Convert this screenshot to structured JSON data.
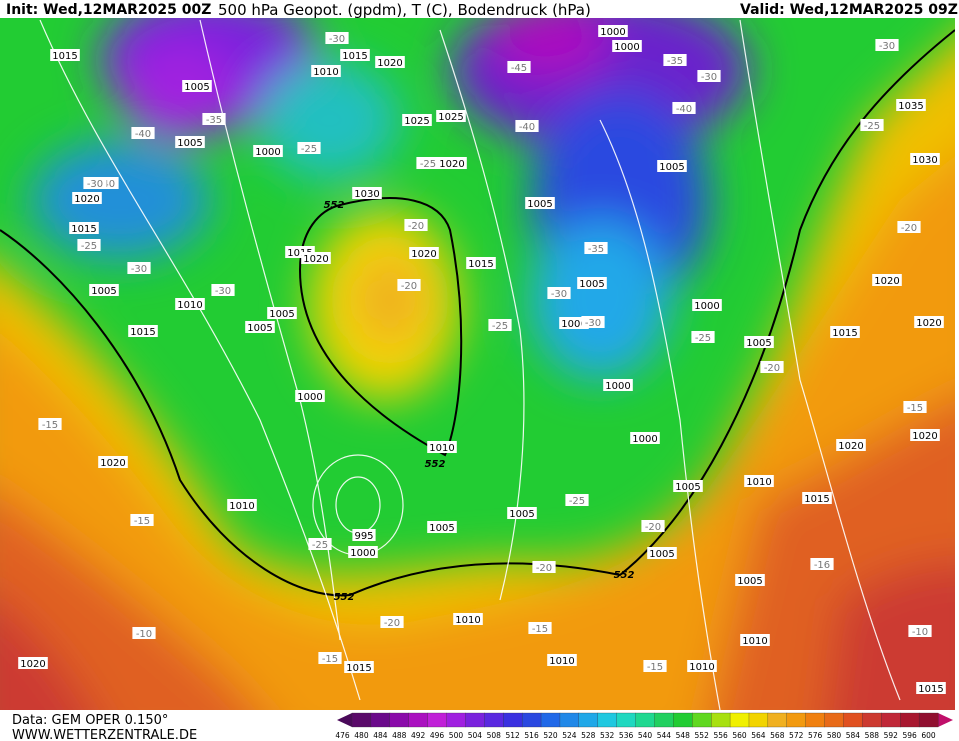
{
  "header": {
    "init": "Init: Wed,12MAR2025 00Z",
    "title": "500 hPa Geopot. (gpdm), T (C), Bodendruck (hPa)",
    "valid": "Valid: Wed,12MAR2025 09Z"
  },
  "footer": {
    "data": "Data: GEM OPER 0.150°",
    "site": "WWW.WETTERZENTRALE.DE"
  },
  "scale": [
    476,
    480,
    484,
    488,
    492,
    496,
    500,
    504,
    508,
    512,
    516,
    520,
    524,
    528,
    532,
    536,
    540,
    544,
    548,
    552,
    556,
    560,
    564,
    568,
    572,
    576,
    580,
    584,
    588,
    592,
    596,
    600
  ],
  "map": {
    "pressure_labels": [
      "1015",
      "1005",
      "1005",
      "1000",
      "1010",
      "1015",
      "1020",
      "1025",
      "1025",
      "1020",
      "1030",
      "1015",
      "1020",
      "1020",
      "1015",
      "1005",
      "1005",
      "1000",
      "1000",
      "1000",
      "1000",
      "1005",
      "1000",
      "1000",
      "1035",
      "1030",
      "1020",
      "1020",
      "1015",
      "1005",
      "1020",
      "1020",
      "1010",
      "1015",
      "1005",
      "1005",
      "1005",
      "1010",
      "1010",
      "1010",
      "1010",
      "1015",
      "1020",
      "1020",
      "1010",
      "995",
      "1000",
      "1005",
      "1005",
      "1010",
      "1000",
      "1005",
      "1005",
      "1010",
      "1015",
      "1005",
      "1015",
      "1020",
      "1015"
    ],
    "temperature_labels": [
      "-30",
      "-45",
      "-35",
      "-30",
      "-40",
      "-40",
      "-35",
      "-40",
      "-40",
      "-30",
      "-25",
      "-25",
      "-25",
      "-30",
      "-20",
      "-20",
      "-30",
      "-30",
      "-25",
      "-25",
      "-35",
      "-30",
      "-30",
      "-25",
      "-20",
      "-20",
      "-15",
      "-15",
      "-15",
      "-20",
      "-25",
      "-20",
      "-16",
      "-10",
      "-10",
      "-15",
      "-20",
      "-15",
      "-15",
      "-25"
    ],
    "height_labels": [
      "552",
      "552",
      "552",
      "552"
    ]
  }
}
